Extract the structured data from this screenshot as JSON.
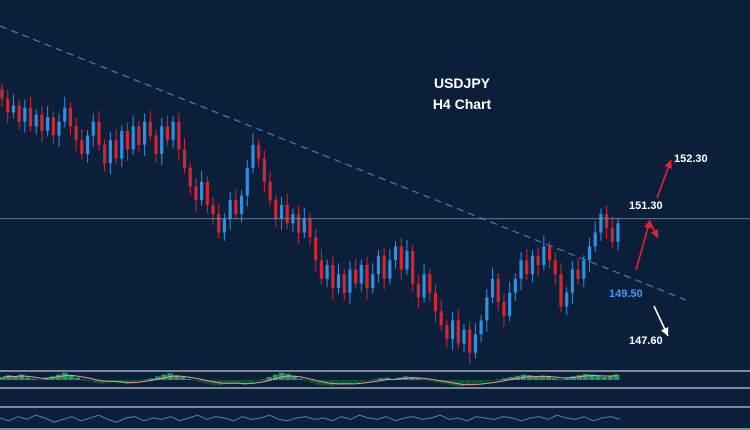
{
  "chart_data": {
    "type": "candlestick",
    "title_line1": "USDJPY",
    "title_line2": "H4 Chart",
    "colors": {
      "background": "#0b1f3b",
      "bull": "#2f8fe0",
      "bear": "#d4262e",
      "trendline": "#3a7fd0",
      "level_line": "#7d93ab",
      "hist_bull": "#1f9e55",
      "hist_bear": "#0f5a2c",
      "signal": "#e89a9a",
      "arrow_up": "#e1242b",
      "arrow_down": "#ffffff",
      "text": "#ffffff",
      "level_highlight": "#3d9bff",
      "panel_border": "#c8cdd4",
      "oscillator": "#4d7fb8"
    },
    "ylim": [
      146.4,
      153.8
    ],
    "closes": [
      152.1,
      151.8,
      151.95,
      151.6,
      151.9,
      151.5,
      151.75,
      151.4,
      151.7,
      151.3,
      151.6,
      151.9,
      151.5,
      151.2,
      150.9,
      151.3,
      151.6,
      151.1,
      150.7,
      151.2,
      150.8,
      151.4,
      151.0,
      151.5,
      151.1,
      151.6,
      151.3,
      150.9,
      151.5,
      151.2,
      151.6,
      151.0,
      150.6,
      150.2,
      149.9,
      150.3,
      149.8,
      149.6,
      149.2,
      149.5,
      149.9,
      149.6,
      150.0,
      150.6,
      151.1,
      150.8,
      150.3,
      149.9,
      149.5,
      149.8,
      149.4,
      149.6,
      149.2,
      149.5,
      149.1,
      148.6,
      148.2,
      148.5,
      148.0,
      148.3,
      147.9,
      148.4,
      148.1,
      148.5,
      148.0,
      148.3,
      148.7,
      148.2,
      148.6,
      148.9,
      148.4,
      148.8,
      148.1,
      147.8,
      148.3,
      147.9,
      147.5,
      147.2,
      146.9,
      147.3,
      146.8,
      147.1,
      146.6,
      147.0,
      147.3,
      147.8,
      148.2,
      147.7,
      147.4,
      147.9,
      148.2,
      148.6,
      148.3,
      148.7,
      148.5,
      148.9,
      148.6,
      148.3,
      147.6,
      147.9,
      148.4,
      148.2,
      148.6,
      148.9,
      149.2,
      149.6,
      149.3,
      149.0,
      149.4
    ],
    "levels": [
      {
        "label": "152.30",
        "value": 152.3
      },
      {
        "label": "151.30",
        "value": 151.3
      },
      {
        "label": "149.50",
        "value": 149.5
      },
      {
        "label": "147.60",
        "value": 147.6
      }
    ],
    "histogram": [
      0.5,
      0.8,
      0.6,
      0.9,
      0.4,
      0.2,
      -0.1,
      0.3,
      0.6,
      0.9,
      1.2,
      0.8,
      0.4,
      0.1,
      -0.2,
      -0.5,
      -0.6,
      -0.4,
      -0.3,
      -0.5,
      -0.7,
      -0.4,
      -0.2,
      0.1,
      0.3,
      0.6,
      0.9,
      1.1,
      0.8,
      0.5,
      0.2,
      -0.1,
      -0.4,
      -0.6,
      -0.8,
      -0.9,
      -0.7,
      -0.5,
      -0.6,
      -0.8,
      -0.5,
      -0.2,
      0.1,
      0.5,
      0.9,
      1.2,
      1.0,
      0.6,
      0.2,
      -0.2,
      -0.5,
      -0.8,
      -0.9,
      -1.0,
      -0.8,
      -0.6,
      -0.7,
      -0.5,
      -0.3,
      -0.1,
      0.1,
      0.3,
      0.4,
      0.2,
      0.4,
      0.6,
      0.5,
      0.3,
      0.1,
      -0.2,
      -0.4,
      -0.6,
      -0.8,
      -1.0,
      -1.1,
      -0.9,
      -0.7,
      -0.5,
      -0.3,
      -0.1,
      0.1,
      0.3,
      0.5,
      0.7,
      0.9,
      0.8,
      0.6,
      0.7,
      0.5,
      0.3,
      0.1,
      0.3,
      0.6,
      0.8,
      1.0,
      0.9,
      0.7,
      0.5,
      0.7,
      0.9
    ],
    "oscillator": [
      0.5,
      0.3,
      0.6,
      0.4,
      0.7,
      0.5,
      0.2,
      0.4,
      0.6,
      0.3,
      0.5,
      0.7,
      0.4,
      0.2,
      0.5,
      0.6,
      0.3,
      0.5,
      0.4,
      0.6,
      0.3,
      0.5,
      0.7,
      0.4,
      0.6,
      0.5,
      0.3,
      0.6,
      0.4,
      0.5,
      0.7,
      0.4,
      0.3,
      0.5,
      0.6,
      0.4,
      0.5,
      0.3,
      0.6,
      0.4,
      0.7,
      0.5,
      0.4,
      0.6,
      0.3,
      0.5,
      0.6,
      0.4,
      0.5,
      0.7,
      0.4,
      0.5,
      0.3,
      0.6,
      0.5,
      0.4,
      0.6,
      0.5,
      0.3,
      0.5,
      0.6,
      0.4,
      0.7,
      0.5,
      0.4,
      0.6,
      0.3,
      0.5,
      0.6,
      0.4
    ]
  }
}
